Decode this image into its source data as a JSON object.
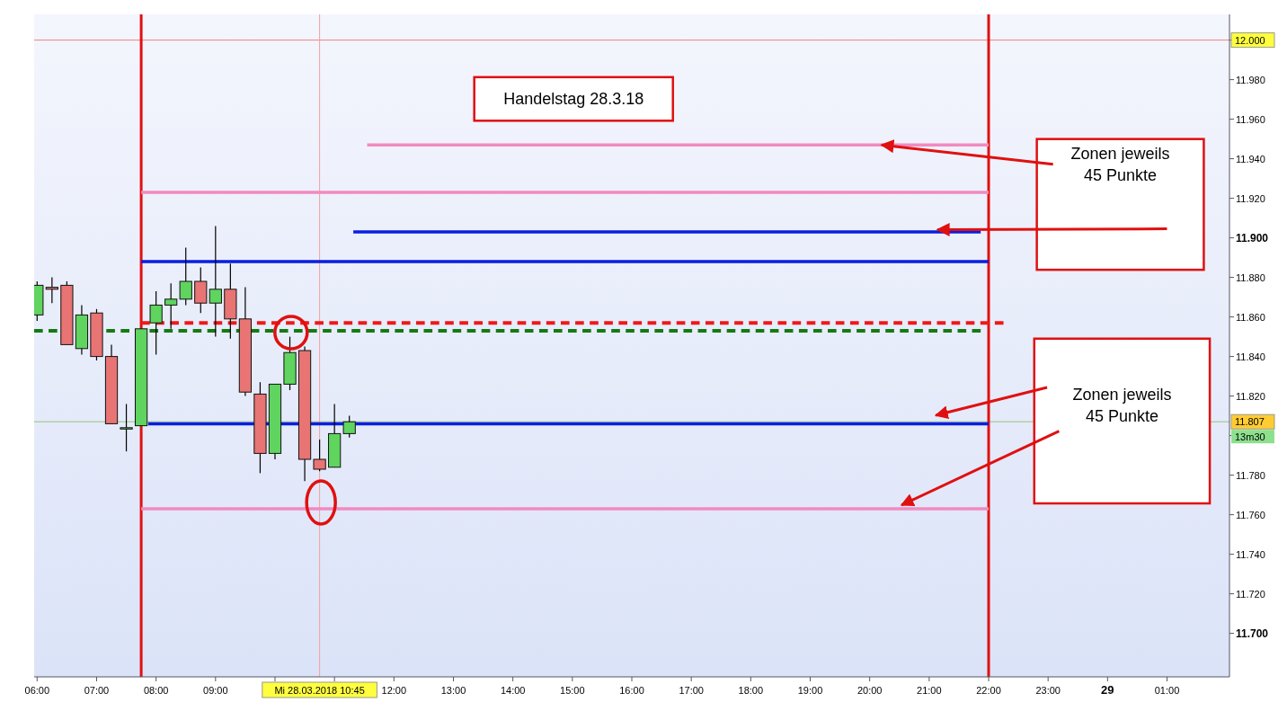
{
  "chart_data": {
    "type": "candlestick",
    "x": [
      "2018-03-28T06:00",
      "2018-03-28T06:15",
      "2018-03-28T06:30",
      "2018-03-28T06:45",
      "2018-03-28T07:00",
      "2018-03-28T07:15",
      "2018-03-28T07:30",
      "2018-03-28T07:45",
      "2018-03-28T08:00",
      "2018-03-28T08:15",
      "2018-03-28T08:30",
      "2018-03-28T08:45",
      "2018-03-28T09:00",
      "2018-03-28T09:15",
      "2018-03-28T09:30",
      "2018-03-28T09:45",
      "2018-03-28T10:00",
      "2018-03-28T10:15",
      "2018-03-28T10:30",
      "2018-03-28T10:45",
      "2018-03-28T11:00",
      "2018-03-28T11:15"
    ],
    "ohlc": [
      [
        11.861,
        11.878,
        11.858,
        11.876
      ],
      [
        11.875,
        11.88,
        11.867,
        11.874
      ],
      [
        11.876,
        11.878,
        11.846,
        11.846
      ],
      [
        11.844,
        11.866,
        11.841,
        11.861
      ],
      [
        11.862,
        11.864,
        11.838,
        11.84
      ],
      [
        11.84,
        11.846,
        11.806,
        11.806
      ],
      [
        11.804,
        11.816,
        11.792,
        11.804
      ],
      [
        11.805,
        11.854,
        11.805,
        11.854
      ],
      [
        11.857,
        11.873,
        11.841,
        11.866
      ],
      [
        11.866,
        11.877,
        11.854,
        11.869
      ],
      [
        11.869,
        11.895,
        11.866,
        11.878
      ],
      [
        11.878,
        11.885,
        11.862,
        11.867
      ],
      [
        11.867,
        11.906,
        11.85,
        11.874
      ],
      [
        11.874,
        11.887,
        11.849,
        11.859
      ],
      [
        11.859,
        11.875,
        11.82,
        11.822
      ],
      [
        11.821,
        11.827,
        11.781,
        11.791
      ],
      [
        11.791,
        11.826,
        11.788,
        11.826
      ],
      [
        11.826,
        11.85,
        11.823,
        11.842
      ],
      [
        11.843,
        11.845,
        11.777,
        11.788
      ],
      [
        11.788,
        11.798,
        11.782,
        11.783
      ],
      [
        11.784,
        11.816,
        11.784,
        11.801
      ],
      [
        11.801,
        11.81,
        11.799,
        11.807
      ]
    ],
    "series": [
      {
        "type": "line",
        "x": [
          "2018-03-28T11:33",
          "2018-03-28T22:00"
        ],
        "values": [
          11.947,
          11.947
        ],
        "color": "#f28ac0"
      },
      {
        "type": "line",
        "x": [
          "2018-03-28T07:45",
          "2018-03-28T22:00"
        ],
        "values": [
          11.923,
          11.923
        ],
        "color": "#f28ac0"
      },
      {
        "type": "line",
        "x": [
          "2018-03-28T11:19",
          "2018-03-28T21:52"
        ],
        "values": [
          11.903,
          11.903
        ],
        "color": "#0a1ee0"
      },
      {
        "type": "line",
        "x": [
          "2018-03-28T07:45",
          "2018-03-28T22:00"
        ],
        "values": [
          11.888,
          11.888
        ],
        "color": "#0a1ee0"
      },
      {
        "type": "line",
        "x": [
          "2018-03-28T07:45",
          "2018-03-28T22:15"
        ],
        "values": [
          11.857,
          11.857
        ],
        "color": "#f01818",
        "line_style": "dashed"
      },
      {
        "type": "line",
        "x": [
          "2018-03-28T05:57",
          "2018-03-28T21:52"
        ],
        "values": [
          11.853,
          11.853
        ],
        "color": "#157a15",
        "line_style": "dashed"
      },
      {
        "type": "line",
        "x": [
          "2018-03-28T07:52",
          "2018-03-28T22:00"
        ],
        "values": [
          11.806,
          11.806
        ],
        "color": "#0a1ee0"
      },
      {
        "type": "line",
        "x": [
          "2018-03-28T07:45",
          "2018-03-28T22:00"
        ],
        "values": [
          11.763,
          11.763
        ],
        "color": "#f28ac0"
      }
    ],
    "xlim": [
      "2018-03-28T05:57",
      "2018-03-29T02:03"
    ],
    "xticks": [
      {
        "value": "2018-03-28T06:00",
        "label": "06:00"
      },
      {
        "value": "2018-03-28T07:00",
        "label": "07:00"
      },
      {
        "value": "2018-03-28T08:00",
        "label": "08:00"
      },
      {
        "value": "2018-03-28T09:00",
        "label": "09:00"
      },
      {
        "value": "2018-03-28T10:00",
        "label": null
      },
      {
        "value": "2018-03-28T11:00",
        "label": null
      },
      {
        "value": "2018-03-28T12:00",
        "label": "12:00"
      },
      {
        "value": "2018-03-28T13:00",
        "label": "13:00"
      },
      {
        "value": "2018-03-28T14:00",
        "label": "14:00"
      },
      {
        "value": "2018-03-28T15:00",
        "label": "15:00"
      },
      {
        "value": "2018-03-28T16:00",
        "label": "16:00"
      },
      {
        "value": "2018-03-28T17:00",
        "label": "17:00"
      },
      {
        "value": "2018-03-28T18:00",
        "label": "18:00"
      },
      {
        "value": "2018-03-28T19:00",
        "label": "19:00"
      },
      {
        "value": "2018-03-28T20:00",
        "label": "20:00"
      },
      {
        "value": "2018-03-28T21:00",
        "label": "21:00"
      },
      {
        "value": "2018-03-28T22:00",
        "label": "22:00"
      },
      {
        "value": "2018-03-28T23:00",
        "label": "23:00"
      },
      {
        "value": "2018-03-29T00:00",
        "label": "29"
      },
      {
        "value": "2018-03-29T01:00",
        "label": "01:00"
      }
    ],
    "ylim": [
      11.678,
      12.013
    ],
    "yticks": [
      {
        "value": 11.7,
        "label": "11.700"
      },
      {
        "value": 11.72,
        "label": "11.720"
      },
      {
        "value": 11.74,
        "label": "11.740"
      },
      {
        "value": 11.76,
        "label": "11.760"
      },
      {
        "value": 11.78,
        "label": "11.780"
      },
      {
        "value": 11.8,
        "label": null
      },
      {
        "value": 11.82,
        "label": "11.820"
      },
      {
        "value": 11.84,
        "label": "11.840"
      },
      {
        "value": 11.86,
        "label": "11.860"
      },
      {
        "value": 11.88,
        "label": "11.880"
      },
      {
        "value": 11.9,
        "label": "11.900"
      },
      {
        "value": 11.92,
        "label": "11.920"
      },
      {
        "value": 11.94,
        "label": "11.940"
      },
      {
        "value": 11.96,
        "label": "11.960"
      },
      {
        "value": 11.98,
        "label": "11.980"
      },
      {
        "value": 12,
        "label": null
      }
    ],
    "ref_lines": [
      {
        "axis": "y",
        "value": 12.0,
        "label": "12.000",
        "color": "#f08080"
      },
      {
        "axis": "y",
        "value": 11.807,
        "label": "11.807",
        "color": "#9cc27a"
      },
      {
        "axis": "x",
        "value": "2018-03-28T07:45",
        "color": "#e01010"
      },
      {
        "axis": "x",
        "value": "2018-03-28T22:00",
        "color": "#e01010"
      },
      {
        "axis": "x",
        "value": "2018-03-28T10:45",
        "label": "Mi 28.03.2018 10:45",
        "color": "#f4a0a0"
      }
    ],
    "annotations": [
      "Handelstag 28.3.18",
      {
        "text": "Zonen jeweils\n45 Punkte",
        "x": "2018-03-28T20:12",
        "y": 11.947
      },
      "Zonen jeweils\n45 Punkte",
      "13m30"
    ],
    "grid": false
  }
}
